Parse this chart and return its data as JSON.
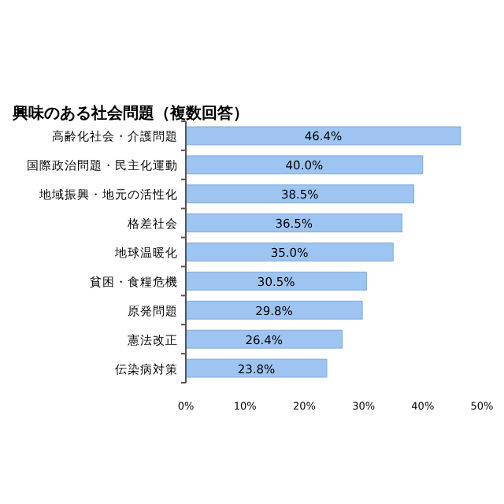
{
  "chart_data": {
    "type": "bar",
    "orientation": "horizontal",
    "title": "興味のある社会問題（複数回答）",
    "categories": [
      "高齢化社会・介護問題",
      "国際政治問題・民主化運動",
      "地域振興・地元の活性化",
      "格差社会",
      "地球温暖化",
      "貧困・食糧危機",
      "原発問題",
      "憲法改正",
      "伝染病対策"
    ],
    "values": [
      46.4,
      40.0,
      38.5,
      36.5,
      35.0,
      30.5,
      29.8,
      26.4,
      23.8
    ],
    "value_labels": [
      "46.4%",
      "40.0%",
      "38.5%",
      "36.5%",
      "35.0%",
      "30.5%",
      "29.8%",
      "26.4%",
      "23.8%"
    ],
    "color": "#9ec5f2",
    "xlim": [
      0,
      50
    ],
    "xticks": [
      {
        "value": 0,
        "label": "0%"
      },
      {
        "value": 10,
        "label": "10%"
      },
      {
        "value": 20,
        "label": "20%"
      },
      {
        "value": 30,
        "label": "30%"
      },
      {
        "value": 40,
        "label": "40%"
      },
      {
        "value": 50,
        "label": "50%"
      }
    ],
    "grid": false
  }
}
